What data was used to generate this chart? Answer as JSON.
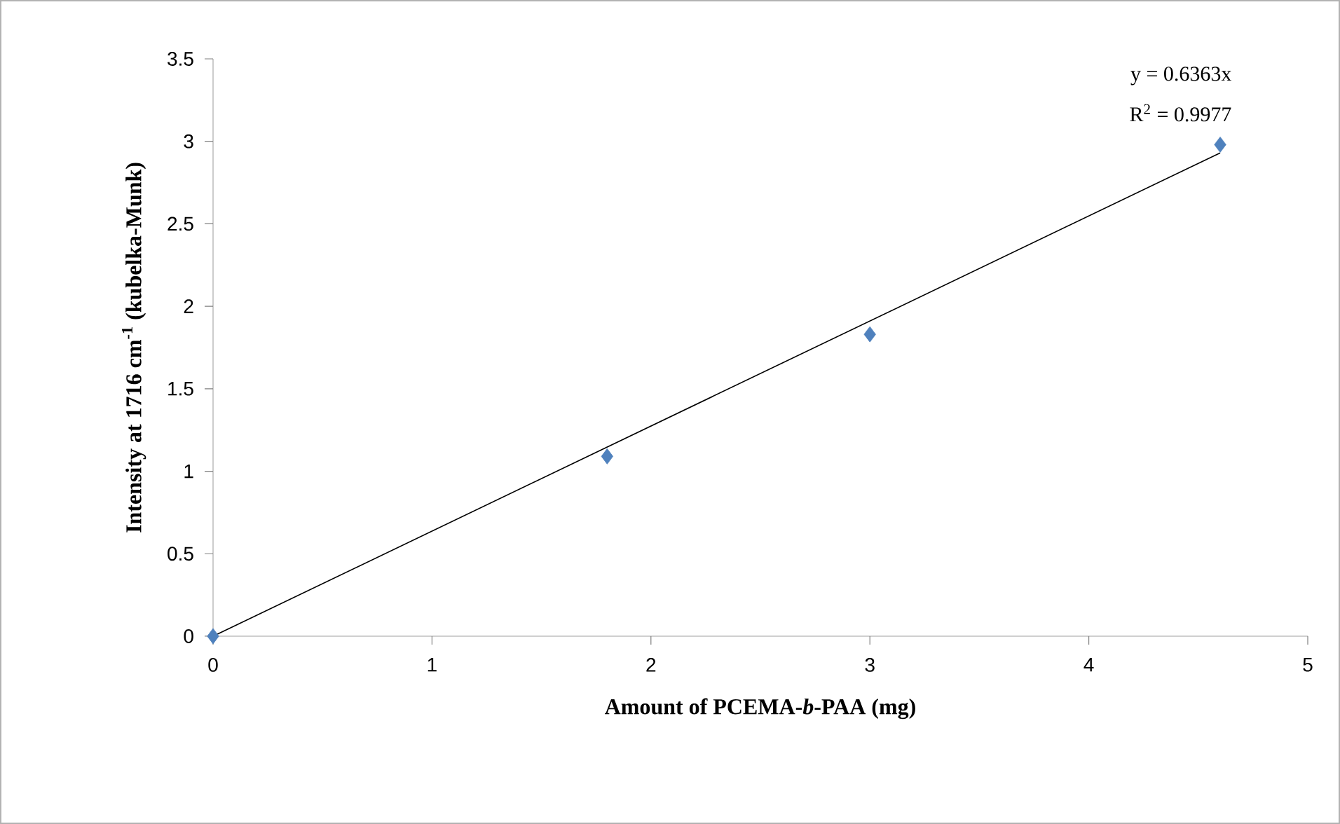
{
  "chart_data": {
    "type": "scatter",
    "xlabel": "Amount of PCEMA-*b*-PAA (mg)",
    "ylabel": "Intensity at 1716 cm$^{-1}$ (kubelka-Munk)",
    "series": [
      {
        "color": "#4f81bd",
        "marker": "diamond",
        "x": [
          0,
          1.8,
          3,
          4.6
        ],
        "values": [
          0,
          1.09,
          1.83,
          2.98
        ]
      },
      {
        "type": "line",
        "color": "#000000",
        "marker": "none",
        "line_style": "solid",
        "x": [
          0,
          4.6
        ],
        "values": [
          0,
          2.93
        ]
      }
    ],
    "annotations": [
      "y = 0.6363x",
      "R$^{2}$ = 0.9977"
    ],
    "xlim": [
      0,
      5
    ],
    "xticks": [
      0,
      1,
      2,
      3,
      4,
      5
    ],
    "ylim": [
      0,
      3.5
    ],
    "yticks": [
      0,
      0.5,
      1,
      1.5,
      2,
      2.5,
      3,
      3.5
    ],
    "grid": false
  }
}
